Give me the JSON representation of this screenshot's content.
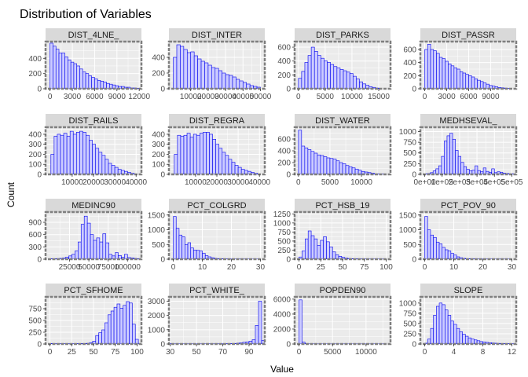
{
  "chart_data": {
    "type": "bar",
    "title": "Distribution of Variables",
    "xlabel": "Value",
    "ylabel": "Count",
    "facet_layout": "4 rows x 4 columns, free scales",
    "grid": true,
    "colors": {
      "bar_fill": "#ccccff",
      "bar_stroke": "#0000ee",
      "panel_bg": "#ebebeb",
      "strip_bg": "#d9d9d9",
      "panel_border": "#7f7f7f"
    },
    "panels": [
      {
        "name": "DIST_4LNE_",
        "xlim": [
          -600,
          12300
        ],
        "ylim": [
          0,
          620
        ],
        "xticks": [
          0,
          3000,
          6000,
          9000,
          12000
        ],
        "xtick_labels": [
          "0",
          "3000",
          "6000",
          "9000",
          "12000"
        ],
        "yticks": [
          0,
          200,
          400
        ],
        "ytick_labels": [
          "0",
          "200",
          "400"
        ],
        "bins": {
          "start": 0,
          "width": 400,
          "counts": [
            600,
            560,
            520,
            470,
            470,
            420,
            380,
            350,
            330,
            300,
            260,
            220,
            200,
            170,
            150,
            130,
            110,
            100,
            90,
            70,
            60,
            50,
            40,
            30,
            30,
            20,
            20,
            10,
            10,
            5
          ]
        }
      },
      {
        "name": "DIST_INTER",
        "xlim": [
          -2500,
          52500
        ],
        "ylim": [
          0,
          600
        ],
        "xticks": [
          10000,
          20000,
          30000,
          40000,
          50000
        ],
        "xtick_labels": [
          "10000",
          "20000",
          "30000",
          "40000",
          "50000"
        ],
        "yticks": [
          0,
          200,
          400
        ],
        "ytick_labels": [
          "0",
          "200",
          "400"
        ],
        "bins": {
          "start": 0,
          "width": 2000,
          "counts": [
            400,
            560,
            540,
            500,
            460,
            470,
            420,
            380,
            350,
            330,
            300,
            270,
            260,
            230,
            200,
            180,
            170,
            150,
            120,
            100,
            80,
            60,
            40,
            30,
            20
          ]
        }
      },
      {
        "name": "DIST_PARKS",
        "xlim": [
          -700,
          17200
        ],
        "ylim": [
          0,
          680
        ],
        "xticks": [
          0,
          5000,
          10000,
          15000
        ],
        "xtick_labels": [
          "0",
          "5000",
          "10000",
          "15000"
        ],
        "yticks": [
          0,
          200,
          400,
          600
        ],
        "ytick_labels": [
          "0",
          "200",
          "400",
          "600"
        ],
        "bins": {
          "start": 0,
          "width": 600,
          "counts": [
            150,
            250,
            380,
            480,
            600,
            540,
            480,
            440,
            400,
            380,
            350,
            320,
            300,
            280,
            260,
            240,
            220,
            180,
            140,
            100,
            70,
            50,
            30,
            20,
            10,
            5
          ]
        }
      },
      {
        "name": "DIST_PASSR",
        "xlim": [
          -600,
          12500
        ],
        "ylim": [
          0,
          720
        ],
        "xticks": [
          0,
          3000,
          6000,
          9000
        ],
        "xtick_labels": [
          "0",
          "3000",
          "6000",
          "9000"
        ],
        "yticks": [
          0,
          200,
          400,
          600
        ],
        "ytick_labels": [
          "0",
          "200",
          "400",
          "600"
        ],
        "bins": {
          "start": 0,
          "width": 400,
          "counts": [
            600,
            680,
            600,
            580,
            540,
            480,
            460,
            420,
            380,
            350,
            320,
            300,
            260,
            240,
            220,
            200,
            180,
            150,
            130,
            110,
            90,
            70,
            50,
            40,
            30,
            20,
            15,
            10,
            5
          ]
        }
      },
      {
        "name": "DIST_RAILS",
        "xlim": [
          -2500,
          42500
        ],
        "ylim": [
          0,
          470
        ],
        "xticks": [
          10000,
          20000,
          30000,
          40000
        ],
        "xtick_labels": [
          "10000",
          "20000",
          "30000",
          "40000"
        ],
        "yticks": [
          0,
          100,
          200,
          300,
          400
        ],
        "ytick_labels": [
          "0",
          "100",
          "200",
          "300",
          "400"
        ],
        "bins": {
          "start": 0,
          "width": 1500,
          "counts": [
            200,
            380,
            400,
            390,
            410,
            380,
            430,
            400,
            420,
            430,
            420,
            390,
            340,
            300,
            260,
            220,
            190,
            150,
            110,
            90,
            70,
            50,
            40,
            30,
            20,
            10,
            5
          ]
        }
      },
      {
        "name": "DIST_REGRA",
        "xlim": [
          -2500,
          42500
        ],
        "ylim": [
          0,
          470
        ],
        "xticks": [
          10000,
          20000,
          30000,
          40000
        ],
        "xtick_labels": [
          "10000",
          "20000",
          "30000",
          "40000"
        ],
        "yticks": [
          0,
          100,
          200,
          300,
          400
        ],
        "ytick_labels": [
          "0",
          "100",
          "200",
          "300",
          "400"
        ],
        "bins": {
          "start": 0,
          "width": 1500,
          "counts": [
            200,
            390,
            380,
            390,
            410,
            370,
            400,
            390,
            410,
            420,
            420,
            400,
            350,
            300,
            260,
            220,
            190,
            150,
            120,
            90,
            70,
            50,
            40,
            30,
            20,
            10,
            5
          ]
        }
      },
      {
        "name": "DIST_WATER",
        "xlim": [
          -600,
          14600
        ],
        "ylim": [
          0,
          800
        ],
        "xticks": [
          0,
          5000,
          10000
        ],
        "xtick_labels": [
          "0",
          "5000",
          "10000"
        ],
        "yticks": [
          0,
          200,
          400,
          600
        ],
        "ytick_labels": [
          "0",
          "200",
          "400",
          "600"
        ],
        "bins": {
          "start": 0,
          "width": 500,
          "counts": [
            750,
            480,
            450,
            420,
            390,
            360,
            330,
            320,
            300,
            280,
            270,
            260,
            230,
            200,
            180,
            150,
            130,
            110,
            90,
            70,
            50,
            40,
            30,
            20,
            10,
            5,
            3
          ]
        }
      },
      {
        "name": "MEDHSEVAL_",
        "xlim": [
          -25000,
          525000
        ],
        "ylim": [
          0,
          1100
        ],
        "xticks": [
          0,
          100000,
          200000,
          300000,
          400000,
          500000
        ],
        "xtick_labels": [
          "0e+00",
          "1e+05",
          "2e+05",
          "3e+05",
          "4e+05",
          "5e+05"
        ],
        "yticks": [
          0,
          250,
          500,
          750,
          1000
        ],
        "ytick_labels": [
          "0",
          "250",
          "500",
          "750",
          "1000"
        ],
        "bins": {
          "start": 0,
          "width": 16000,
          "counts": [
            10,
            20,
            40,
            80,
            130,
            200,
            420,
            780,
            900,
            960,
            820,
            560,
            420,
            280,
            180,
            120,
            80,
            100,
            200,
            90,
            60,
            150,
            70,
            50,
            130,
            40,
            60,
            50,
            30,
            20,
            15,
            10
          ]
        }
      },
      {
        "name": "MEDINC90",
        "xlim": [
          -6000,
          118000
        ],
        "ylim": [
          0,
          1150
        ],
        "xticks": [
          25000,
          50000,
          75000,
          100000
        ],
        "xtick_labels": [
          "25000",
          "50000",
          "75000",
          "100000"
        ],
        "yticks": [
          0,
          300,
          600,
          900
        ],
        "ytick_labels": [
          "0",
          "300",
          "600",
          "900"
        ],
        "bins": {
          "start": 0,
          "width": 4000,
          "counts": [
            10,
            10,
            15,
            20,
            30,
            50,
            80,
            120,
            200,
            420,
            850,
            1050,
            880,
            600,
            460,
            520,
            420,
            620,
            400,
            120,
            80,
            160,
            90,
            50,
            120,
            40,
            30,
            20,
            10
          ]
        }
      },
      {
        "name": "PCT_COLGRD",
        "xlim": [
          -1.5,
          31.5
        ],
        "ylim": [
          0,
          1600
        ],
        "xticks": [
          0,
          10,
          20,
          30
        ],
        "xtick_labels": [
          "0",
          "10",
          "20",
          "30"
        ],
        "yticks": [
          0,
          500,
          1000,
          1500
        ],
        "ytick_labels": [
          "0",
          "500",
          "1000",
          "1500"
        ],
        "bins": {
          "start": 0,
          "width": 1,
          "counts": [
            1450,
            1050,
            820,
            760,
            500,
            560,
            380,
            310,
            300,
            280,
            200,
            120,
            80,
            50,
            30,
            20,
            15,
            10,
            8,
            5,
            5,
            3,
            3,
            2,
            2,
            2,
            1,
            1,
            1,
            1
          ]
        }
      },
      {
        "name": "PCT_HSB_19",
        "xlim": [
          -5,
          105
        ],
        "ylim": [
          0,
          1300
        ],
        "xticks": [
          0,
          25,
          50,
          75,
          100
        ],
        "xtick_labels": [
          "0",
          "25",
          "50",
          "75",
          "100"
        ],
        "yticks": [
          0,
          250,
          500,
          750,
          1000,
          1250
        ],
        "ytick_labels": [
          "0",
          "250",
          "500",
          "750",
          "1000",
          "1250"
        ],
        "bins": {
          "start": 0,
          "width": 3.5,
          "counts": [
            60,
            230,
            560,
            780,
            650,
            560,
            380,
            520,
            620,
            480,
            340,
            200,
            120,
            80,
            50,
            30,
            20,
            15,
            10,
            8,
            5,
            4,
            3,
            2,
            2,
            1,
            1,
            1
          ]
        }
      },
      {
        "name": "PCT_POV_90",
        "xlim": [
          -1.5,
          31.5
        ],
        "ylim": [
          0,
          1600
        ],
        "xticks": [
          0,
          10,
          20,
          30
        ],
        "xtick_labels": [
          "0",
          "10",
          "20",
          "30"
        ],
        "yticks": [
          0,
          500,
          1000,
          1500
        ],
        "ytick_labels": [
          "0",
          "500",
          "1000",
          "1500"
        ],
        "bins": {
          "start": 0,
          "width": 1,
          "counts": [
            1450,
            1000,
            820,
            740,
            580,
            520,
            400,
            320,
            280,
            200,
            140,
            80,
            50,
            30,
            20,
            15,
            10,
            8,
            5,
            5,
            3,
            3,
            2,
            2,
            1,
            1,
            1,
            1,
            1,
            1
          ]
        }
      },
      {
        "name": "PCT_SFHOME",
        "xlim": [
          -5,
          105
        ],
        "ylim": [
          0,
          1000
        ],
        "xticks": [
          0,
          25,
          50,
          75,
          100
        ],
        "xtick_labels": [
          "0",
          "25",
          "50",
          "75",
          "100"
        ],
        "yticks": [
          0,
          250,
          500,
          750
        ],
        "ytick_labels": [
          "0",
          "250",
          "500",
          "750"
        ],
        "bins": {
          "start": 0,
          "width": 3.5,
          "counts": [
            10,
            5,
            5,
            5,
            5,
            5,
            5,
            5,
            5,
            8,
            10,
            10,
            15,
            30,
            60,
            180,
            240,
            300,
            450,
            620,
            700,
            780,
            850,
            760,
            820,
            900,
            870,
            420,
            100
          ]
        }
      },
      {
        "name": "PCT_WHITE_",
        "xlim": [
          29,
          102
        ],
        "ylim": [
          0,
          3300
        ],
        "xticks": [
          30,
          50,
          70,
          90
        ],
        "xtick_labels": [
          "30",
          "50",
          "70",
          "90"
        ],
        "yticks": [
          0,
          1000,
          2000,
          3000
        ],
        "ytick_labels": [
          "0",
          "1000",
          "2000",
          "3000"
        ],
        "bins": {
          "start": 30,
          "width": 2.4,
          "counts": [
            20,
            5,
            5,
            5,
            5,
            5,
            5,
            5,
            5,
            5,
            5,
            5,
            10,
            5,
            10,
            10,
            15,
            20,
            20,
            30,
            40,
            60,
            80,
            120,
            150,
            200,
            300,
            1300,
            3000,
            250
          ]
        }
      },
      {
        "name": "POPDEN90",
        "xlim": [
          -650,
          13650
        ],
        "ylim": [
          0,
          6300
        ],
        "xticks": [
          0,
          5000,
          10000
        ],
        "xtick_labels": [
          "0",
          "5000",
          "10000"
        ],
        "yticks": [
          0,
          2000,
          4000,
          6000
        ],
        "ytick_labels": [
          "0",
          "2000",
          "4000",
          "6000"
        ],
        "bins": {
          "start": 0,
          "width": 450,
          "counts": [
            5900,
            250,
            30,
            10,
            5,
            3,
            2,
            1,
            1,
            1,
            1,
            1,
            1,
            1,
            1,
            1,
            1,
            1,
            1,
            1,
            1,
            1,
            1,
            1,
            1,
            1,
            1,
            1,
            1
          ]
        }
      },
      {
        "name": "SLOPE",
        "xlim": [
          -0.6,
          12.6
        ],
        "ylim": [
          0,
          1150
        ],
        "xticks": [
          0,
          4,
          8,
          12
        ],
        "xtick_labels": [
          "0",
          "4",
          "8",
          "12"
        ],
        "yticks": [
          0,
          250,
          500,
          750,
          1000
        ],
        "ytick_labels": [
          "0",
          "250",
          "500",
          "750",
          "1000"
        ],
        "bins": {
          "start": 0,
          "width": 0.4,
          "counts": [
            20,
            120,
            380,
            700,
            920,
            1000,
            960,
            830,
            700,
            560,
            480,
            380,
            300,
            240,
            190,
            150,
            120,
            100,
            80,
            60,
            50,
            40,
            30,
            25,
            20,
            15,
            12,
            10,
            8,
            6,
            5,
            4
          ]
        }
      }
    ]
  }
}
